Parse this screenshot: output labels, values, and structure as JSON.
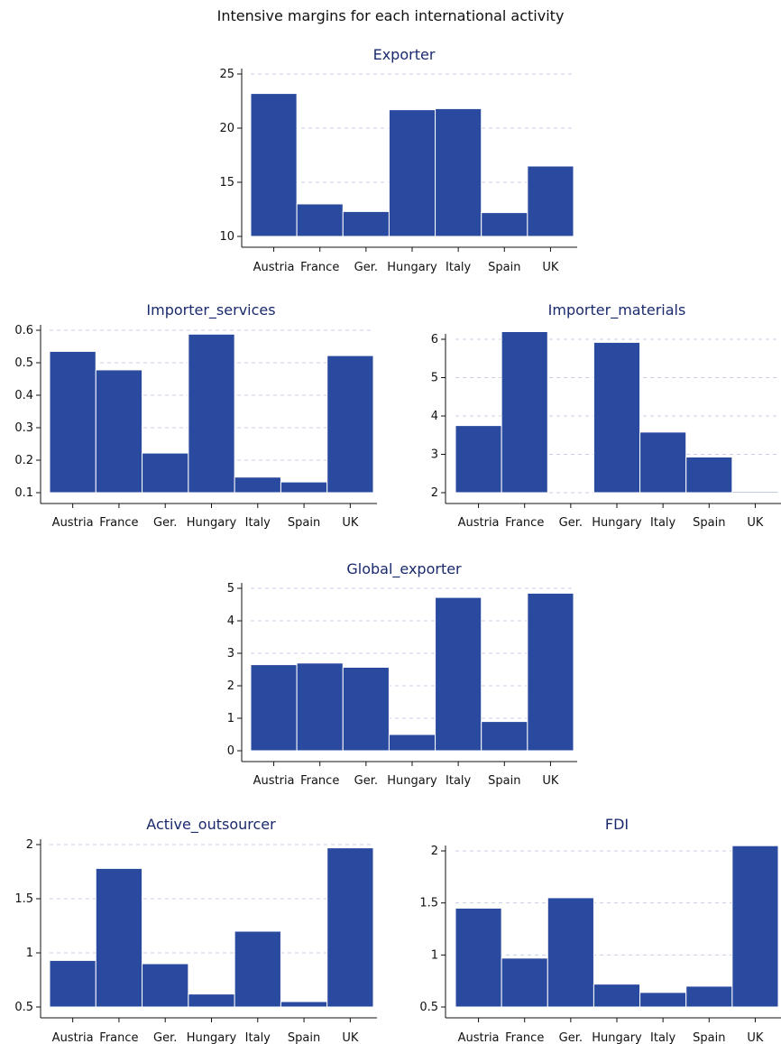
{
  "title": "Intensive margins for each international activity",
  "colors": {
    "bar": "#2a4aa0",
    "panel_title": "#1a2a6c"
  },
  "chart_data": [
    {
      "type": "bar",
      "title": "Exporter",
      "categories": [
        "Austria",
        "France",
        "Ger.",
        "Hungary",
        "Italy",
        "Spain",
        "UK"
      ],
      "values": [
        23.2,
        13.0,
        12.3,
        21.7,
        21.8,
        12.2,
        16.5
      ],
      "ylim": [
        10,
        25
      ],
      "yticks": [
        10,
        15,
        20,
        25
      ],
      "ytick_labels": [
        "10",
        "15",
        "20",
        "25"
      ],
      "grid": true
    },
    {
      "type": "bar",
      "title": "Importer_services",
      "categories": [
        "Austria",
        "France",
        "Ger.",
        "Hungary",
        "Italy",
        "Spain",
        "UK"
      ],
      "values": [
        0.535,
        0.478,
        0.222,
        0.588,
        0.148,
        0.133,
        0.522
      ],
      "ylim": [
        0.1,
        0.6
      ],
      "yticks": [
        0.1,
        0.2,
        0.3,
        0.4,
        0.5,
        0.6
      ],
      "ytick_labels": [
        "0.1",
        "0.2",
        "0.3",
        "0.4",
        "0.5",
        "0.6"
      ],
      "grid": true
    },
    {
      "type": "bar",
      "title": "Importer_materials",
      "categories": [
        "Austria",
        "France",
        "Ger.",
        "Hungary",
        "Italy",
        "Spain",
        "UK"
      ],
      "values": [
        3.75,
        6.2,
        2.0,
        5.92,
        3.58,
        2.93,
        2.03
      ],
      "ylim": [
        2,
        6
      ],
      "yticks": [
        2,
        3,
        4,
        5,
        6
      ],
      "ytick_labels": [
        "2",
        "3",
        "4",
        "5",
        "6"
      ],
      "grid": true
    },
    {
      "type": "bar",
      "title": "Global_exporter",
      "categories": [
        "Austria",
        "France",
        "Ger.",
        "Hungary",
        "Italy",
        "Spain",
        "UK"
      ],
      "values": [
        2.65,
        2.7,
        2.57,
        0.5,
        4.72,
        0.9,
        4.85
      ],
      "ylim": [
        0,
        5
      ],
      "yticks": [
        0,
        1,
        2,
        3,
        4,
        5
      ],
      "ytick_labels": [
        "0",
        "1",
        "2",
        "3",
        "4",
        "5"
      ],
      "grid": true
    },
    {
      "type": "bar",
      "title": "Active_outsourcer",
      "categories": [
        "Austria",
        "France",
        "Ger.",
        "Hungary",
        "Italy",
        "Spain",
        "UK"
      ],
      "values": [
        0.93,
        1.78,
        0.9,
        0.62,
        1.2,
        0.55,
        1.97
      ],
      "ylim": [
        0.5,
        2
      ],
      "yticks": [
        0.5,
        1,
        1.5,
        2
      ],
      "ytick_labels": [
        "0.5",
        "1",
        "1.5",
        "2"
      ],
      "grid": true
    },
    {
      "type": "bar",
      "title": "FDI",
      "categories": [
        "Austria",
        "France",
        "Ger.",
        "Hungary",
        "Italy",
        "Spain",
        "UK"
      ],
      "values": [
        1.45,
        0.97,
        1.55,
        0.72,
        0.64,
        0.7,
        2.05
      ],
      "ylim": [
        0.5,
        2
      ],
      "yticks": [
        0.5,
        1,
        1.5,
        2
      ],
      "ytick_labels": [
        "0.5",
        "1",
        "1.5",
        "2"
      ],
      "grid": true
    }
  ]
}
